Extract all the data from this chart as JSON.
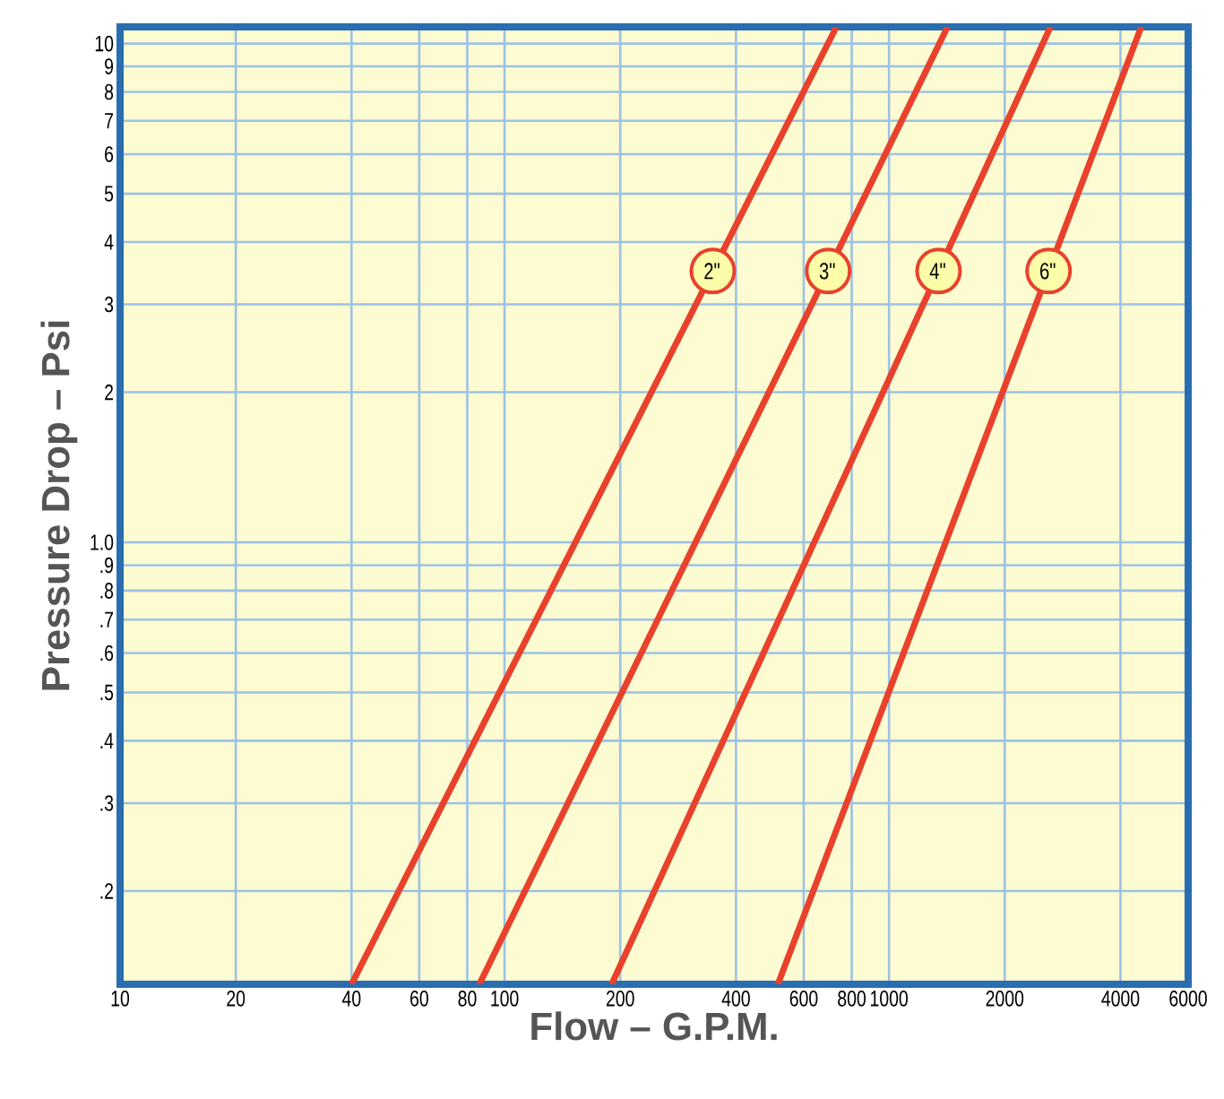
{
  "chart_data": {
    "type": "line",
    "xlabel": "Flow – G.P.M.",
    "ylabel": "Pressure Drop – Psi",
    "log": "xy",
    "grid": true,
    "legend": "top right",
    "marker": "none",
    "line_style": "solid",
    "xlim": [
      10,
      6000
    ],
    "ylim": [
      0.13,
      10.8
    ],
    "xticks": [
      10,
      20,
      40,
      60,
      80,
      100,
      200,
      400,
      600,
      800,
      1000,
      2000,
      4000,
      6000
    ],
    "yticks": [
      {
        "value": 0.2,
        "label": ".2"
      },
      {
        "value": 0.3,
        "label": ".3"
      },
      {
        "value": 0.4,
        "label": ".4"
      },
      {
        "value": 0.5,
        "label": ".5"
      },
      {
        "value": 0.6,
        "label": ".6"
      },
      {
        "value": 0.7,
        "label": ".7"
      },
      {
        "value": 0.8,
        "label": ".8"
      },
      {
        "value": 0.9,
        "label": ".9"
      },
      {
        "value": 1.0,
        "label": "1.0"
      },
      2,
      3,
      4,
      5,
      6,
      7,
      8,
      9,
      10
    ],
    "series": [
      {
        "name": "2\"",
        "color": "#e8412c",
        "x": [
          40,
          730
        ],
        "values": [
          0.13,
          10.8
        ]
      },
      {
        "name": "3\"",
        "color": "#e8412c",
        "x": [
          86,
          1420
        ],
        "values": [
          0.13,
          10.8
        ]
      },
      {
        "name": "4\"",
        "color": "#e8412c",
        "x": [
          190,
          2630
        ],
        "values": [
          0.13,
          10.8
        ]
      },
      {
        "name": "6\"",
        "color": "#e8412c",
        "x": [
          514,
          4530
        ],
        "values": [
          0.13,
          10.8
        ]
      }
    ]
  }
}
